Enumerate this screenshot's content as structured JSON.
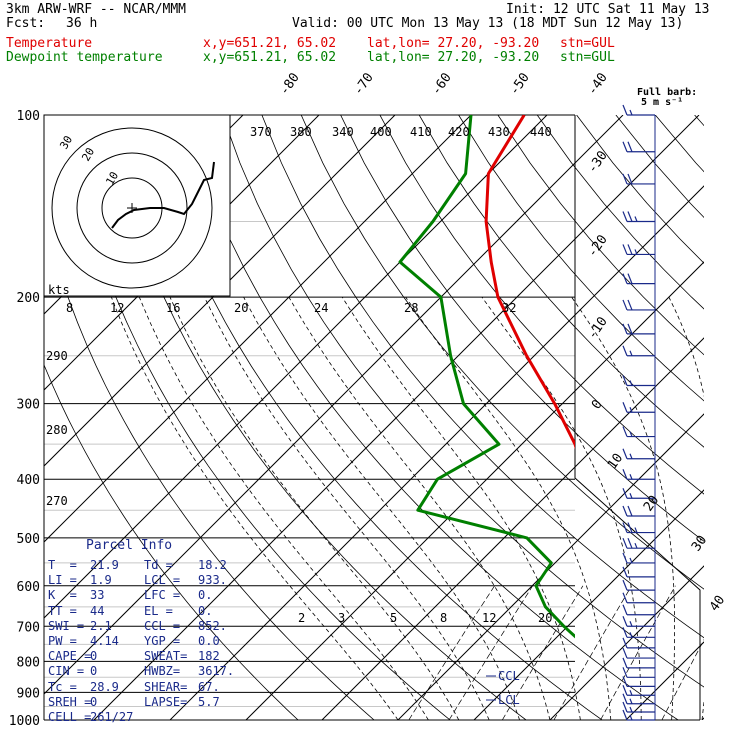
{
  "header": {
    "model": "3km ARW-WRF -- NCAR/MMM",
    "init": "Init: 12 UTC Sat 11 May 13",
    "fcst_label": "Fcst:",
    "fcst_value": "36 h",
    "valid": "Valid: 00 UTC Mon 13 May 13 (18 MDT Sun 12 May 13)"
  },
  "legend": [
    {
      "name": "Temperature",
      "xy": "x,y=651.21, 65.02",
      "latlon": "lat,lon= 27.20, -93.20",
      "stn": "stn=GUL",
      "color": "#e00000"
    },
    {
      "name": "Dewpoint temperature",
      "xy": "x,y=651.21, 65.02",
      "latlon": "lat,lon= 27.20, -93.20",
      "stn": "stn=GUL",
      "color": "#008000"
    }
  ],
  "barb_note": {
    "line1": "Full barb:",
    "line2": "5 m s⁻¹"
  },
  "parcel_info": {
    "title": "Parcel Info",
    "rows": [
      [
        "T  =",
        "21.9",
        "Td =",
        "18.2"
      ],
      [
        "LI =",
        "1.9",
        "LCL =",
        "933."
      ],
      [
        "K  =",
        "33",
        "LFC =",
        "0."
      ],
      [
        "TT =",
        "44",
        "EL =",
        "0."
      ],
      [
        "SWI =",
        "2.1",
        "CCL =",
        "852."
      ],
      [
        "PW =",
        "4.14",
        "YGP =",
        "0.0"
      ],
      [
        "CAPE =",
        "0",
        "SWEAT=",
        "182"
      ],
      [
        "CIN =",
        "0",
        "HWBZ=",
        "3617."
      ],
      [
        "Tc =",
        "28.9",
        "SHEAR=",
        "67."
      ],
      [
        "SREH =",
        "0",
        "LAPSE=",
        "5.7"
      ],
      [
        "CELL =",
        "261/27",
        "",
        ""
      ]
    ]
  },
  "chart_data": {
    "type": "line",
    "title": "",
    "y_axis": {
      "label": "",
      "scale": "log",
      "ticks": [
        100,
        200,
        300,
        400,
        500,
        600,
        700,
        800,
        900,
        1000
      ],
      "range": [
        100,
        1000
      ]
    },
    "isotherm_labels": [
      -80,
      -70,
      -60,
      -50,
      -40,
      -30,
      -20,
      -10,
      0,
      10,
      20,
      30,
      40
    ],
    "theta_labels": [
      370,
      380,
      340,
      400,
      410,
      420,
      430,
      440
    ],
    "dry_adiabat_labels": [
      290,
      280,
      270
    ],
    "mixing_ratio_labels": [
      "2",
      "3",
      "5",
      "8",
      "12",
      "20"
    ],
    "hodograph": {
      "units": "kts",
      "rings": [
        10,
        20,
        30
      ],
      "x_labels": [
        "8",
        "12",
        "16",
        "20",
        "24",
        "28",
        "32"
      ]
    },
    "level_labels": [
      "CCL",
      "LCL"
    ],
    "series": [
      {
        "name": "Temperature",
        "color": "#e00000",
        "pressure": [
          1000,
          970,
          950,
          925,
          900,
          870,
          850,
          800,
          750,
          700,
          650,
          600,
          550,
          500,
          450,
          400,
          350,
          300,
          250,
          200,
          175,
          150,
          125,
          100
        ],
        "temp": [
          21.9,
          20.5,
          19.4,
          18.6,
          17.6,
          15.5,
          14.0,
          11.5,
          9.0,
          6.3,
          3.3,
          0.5,
          -3.5,
          -7.5,
          -12.0,
          -17.0,
          -23.0,
          -31.0,
          -41.0,
          -52.5,
          -58.0,
          -64.0,
          -70.0,
          -73.0
        ]
      },
      {
        "name": "Dewpoint temperature",
        "color": "#008000",
        "pressure": [
          1000,
          970,
          950,
          925,
          900,
          870,
          850,
          800,
          750,
          700,
          650,
          600,
          550,
          500,
          450,
          400,
          350,
          300,
          250,
          200,
          175,
          150,
          125,
          100
        ],
        "temp": [
          18.2,
          16.5,
          16.2,
          14.5,
          12.8,
          12.0,
          11.0,
          7.5,
          4.5,
          -0.5,
          -5.5,
          -9.5,
          -10.5,
          -17.0,
          -35.0,
          -36.5,
          -33.0,
          -43.0,
          -51.0,
          -60.0,
          -70.0,
          -71.0,
          -73.0,
          -80.0
        ]
      }
    ],
    "wind_barbs": {
      "pressure": [
        100,
        115,
        130,
        150,
        170,
        190,
        210,
        230,
        250,
        280,
        310,
        340,
        370,
        400,
        430,
        460,
        490,
        520,
        550,
        580,
        610,
        640,
        670,
        700,
        730,
        760,
        790,
        820,
        850,
        880,
        910,
        940,
        970,
        1000
      ],
      "speed_kts": [
        15,
        20,
        22,
        25,
        25,
        22,
        20,
        20,
        18,
        18,
        15,
        15,
        15,
        15,
        15,
        20,
        25,
        25,
        15,
        10,
        10,
        10,
        10,
        15,
        15,
        10,
        10,
        10,
        10,
        10,
        15,
        15,
        15,
        15
      ]
    }
  }
}
